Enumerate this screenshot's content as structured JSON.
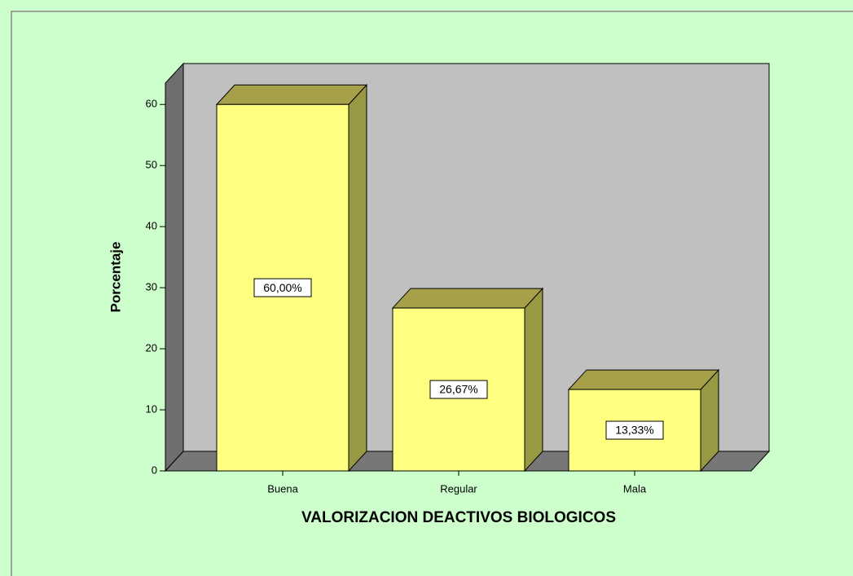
{
  "chart_data": {
    "type": "bar",
    "y_label": "Porcentaje",
    "x_label": "VALORIZACION DEACTIVOS BIOLOGICOS",
    "categories": [
      "Buena",
      "Regular",
      "Mala"
    ],
    "values": [
      60,
      26.67,
      13.33
    ],
    "value_labels": [
      "60,00%",
      "26,67%",
      "13,33%"
    ],
    "color": "#ffff80",
    "ylim": [
      0,
      63.5
    ],
    "yticks": [
      0,
      10,
      20,
      30,
      40,
      50,
      60
    ]
  }
}
